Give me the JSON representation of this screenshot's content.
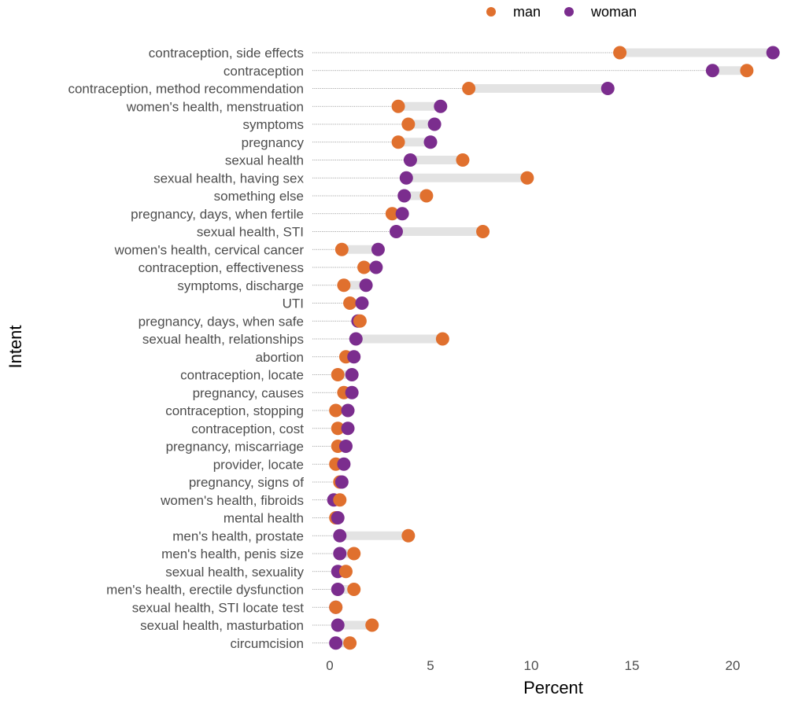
{
  "chart_data": {
    "type": "dumbbell",
    "xlabel": "Percent",
    "ylabel": "Intent",
    "xlim": [
      0,
      22
    ],
    "x_ticks": [
      0,
      5,
      10,
      15,
      20
    ],
    "legend": {
      "placement": "top",
      "entries": [
        "man",
        "woman"
      ]
    },
    "colors": {
      "man": "#E0702E",
      "woman": "#7B2D8E",
      "segment": "#e3e3e3",
      "guide": "#8c8c8c"
    },
    "grid": false,
    "categories": [
      "contraception, side effects",
      "contraception",
      "contraception, method recommendation",
      "women's health, menstruation",
      "symptoms",
      "pregnancy",
      "sexual health",
      "sexual health, having sex",
      "something else",
      "pregnancy, days, when fertile",
      "sexual health, STI",
      "women's health, cervical cancer",
      "contraception, effectiveness",
      "symptoms, discharge",
      "UTI",
      "pregnancy, days, when safe",
      "sexual health, relationships",
      "abortion",
      "contraception, locate",
      "pregnancy, causes",
      "contraception, stopping",
      "contraception, cost",
      "pregnancy, miscarriage",
      "provider, locate",
      "pregnancy, signs of",
      "women's health, fibroids",
      "mental health",
      "men's health, prostate",
      "men's health, penis size",
      "sexual health, sexuality",
      "men's health, erectile dysfunction",
      "sexual health, STI locate test",
      "sexual health, masturbation",
      "circumcision"
    ],
    "series": [
      {
        "name": "man",
        "values": [
          14.4,
          20.7,
          6.9,
          3.4,
          3.9,
          3.4,
          6.6,
          9.8,
          4.8,
          3.1,
          7.6,
          0.6,
          1.7,
          0.7,
          1.0,
          1.5,
          5.6,
          0.8,
          0.4,
          0.7,
          0.3,
          0.4,
          0.4,
          0.3,
          0.5,
          0.5,
          0.3,
          3.9,
          1.2,
          0.8,
          1.2,
          0.3,
          2.1,
          1.0
        ]
      },
      {
        "name": "woman",
        "values": [
          22.0,
          19.0,
          13.8,
          5.5,
          5.2,
          5.0,
          4.0,
          3.8,
          3.7,
          3.6,
          3.3,
          2.4,
          2.3,
          1.8,
          1.6,
          1.4,
          1.3,
          1.2,
          1.1,
          1.1,
          0.9,
          0.9,
          0.8,
          0.7,
          0.6,
          0.2,
          0.4,
          0.5,
          0.5,
          0.4,
          0.4,
          0.3,
          0.4,
          0.3
        ]
      }
    ]
  }
}
